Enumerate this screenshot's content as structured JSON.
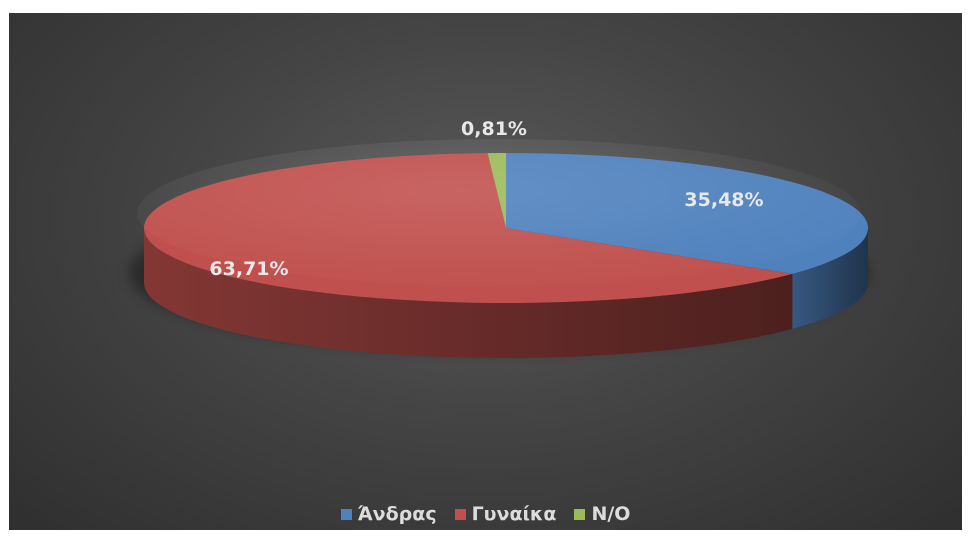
{
  "chart_data": {
    "type": "pie",
    "style": "3d",
    "title": "",
    "categories": [
      "Άνδρας",
      "Γυναίκα",
      "N/O"
    ],
    "values": [
      35.48,
      63.71,
      0.81
    ],
    "labels": [
      "35,48%",
      "63,71%",
      "0,81%"
    ],
    "colors": [
      "#4f81bd",
      "#c0504d",
      "#9bbb59"
    ],
    "legend_position": "bottom",
    "background": "#3f3f3f"
  }
}
